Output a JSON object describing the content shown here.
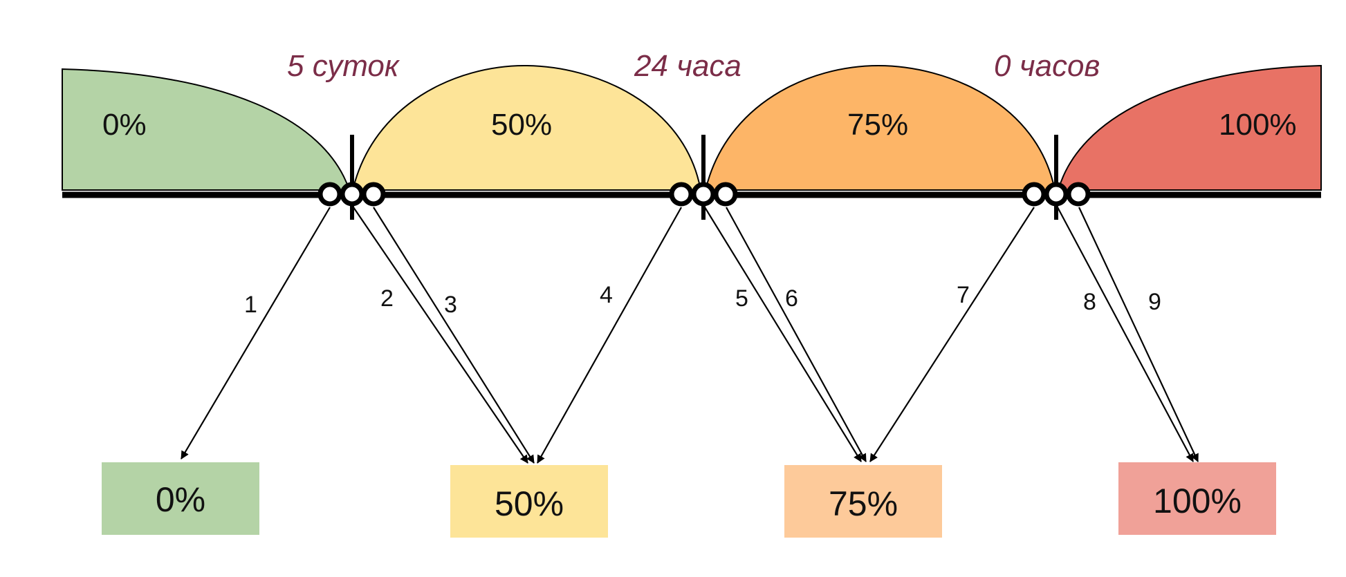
{
  "timepoints": [
    {
      "label": "5 суток"
    },
    {
      "label": "24 часа"
    },
    {
      "label": "0 часов"
    }
  ],
  "zones": [
    {
      "label": "0%",
      "color": "#b4d3a6"
    },
    {
      "label": "50%",
      "color": "#fde498"
    },
    {
      "label": "75%",
      "color": "#fdb567"
    },
    {
      "label": "100%",
      "color": "#e87265"
    }
  ],
  "transitions": [
    {
      "label": "1"
    },
    {
      "label": "2"
    },
    {
      "label": "3"
    },
    {
      "label": "4"
    },
    {
      "label": "5"
    },
    {
      "label": "6"
    },
    {
      "label": "7"
    },
    {
      "label": "8"
    },
    {
      "label": "9"
    }
  ],
  "results": [
    {
      "label": "0%",
      "color": "#b4d3a6"
    },
    {
      "label": "50%",
      "color": "#fde498"
    },
    {
      "label": "75%",
      "color": "#fdca9a"
    },
    {
      "label": "100%",
      "color": "#f0a198"
    }
  ]
}
